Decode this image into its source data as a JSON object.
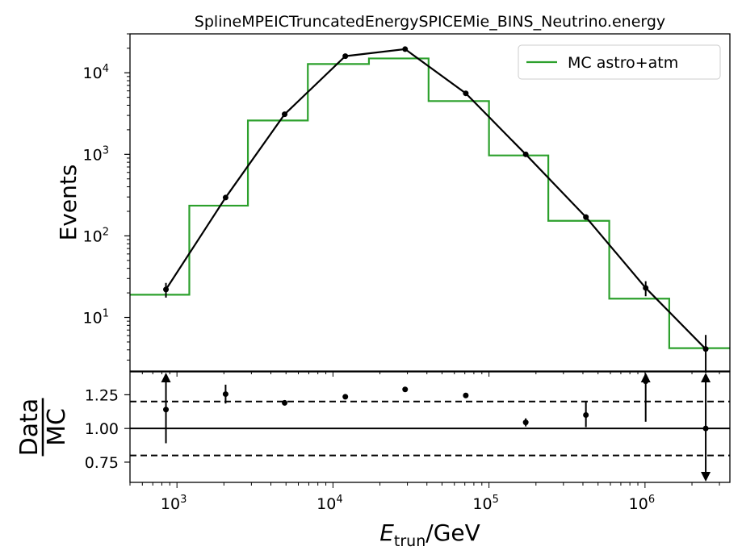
{
  "chart_data": [
    {
      "panel": "main",
      "type": "line",
      "title": "SplineMPEICTruncatedEnergySPICEMie_BINS_Neutrino.energy",
      "ylabel": "Events",
      "xscale": "log",
      "yscale": "log",
      "xlim": [
        500,
        3500000
      ],
      "ylim": [
        2.2,
        30000
      ],
      "x_ticks": [
        {
          "value": 1000,
          "base": "10",
          "exp": "3"
        },
        {
          "value": 10000,
          "base": "10",
          "exp": "4"
        },
        {
          "value": 100000,
          "base": "10",
          "exp": "5"
        },
        {
          "value": 1000000,
          "base": "10",
          "exp": "6"
        }
      ],
      "y_ticks": [
        {
          "value": 10,
          "base": "10",
          "exp": "1"
        },
        {
          "value": 100,
          "base": "10",
          "exp": "2"
        },
        {
          "value": 1000,
          "base": "10",
          "exp": "3"
        },
        {
          "value": 10000,
          "base": "10",
          "exp": "4"
        }
      ],
      "legend_position": "top-right",
      "histogram": {
        "name": "MC astro+atm",
        "color": "#2ca02c",
        "bin_edges": [
          500,
          1200,
          2850,
          6900,
          17000,
          41000,
          100000,
          240000,
          590000,
          1430000,
          3500000
        ],
        "values": [
          19,
          235,
          2600,
          12800,
          15000,
          4500,
          970,
          153,
          17,
          4.2
        ]
      },
      "data_series": {
        "color": "#000000",
        "x": [
          850,
          2050,
          4900,
          12000,
          29000,
          71000,
          172000,
          418000,
          1010000,
          2450000
        ],
        "y": [
          22,
          295,
          3100,
          16000,
          19500,
          5600,
          1000,
          170,
          23,
          4.1
        ],
        "yerr_low": [
          4.5,
          17,
          56,
          126,
          140,
          75,
          32,
          13,
          4.8,
          2
        ],
        "yerr_high": [
          4.5,
          17,
          56,
          126,
          140,
          75,
          32,
          13,
          4.8,
          2
        ]
      }
    },
    {
      "panel": "ratio",
      "type": "scatter",
      "xlabel_base": "E",
      "xlabel_sub": "trun",
      "xlabel_unit": "/GeV",
      "ylabel_num": "Data",
      "ylabel_den": "MC",
      "ylim": [
        0.6,
        1.42
      ],
      "y_ticks": [
        "0.75",
        "1.00",
        "1.25"
      ],
      "y_tick_values": [
        0.75,
        1.0,
        1.25
      ],
      "reference_line": 1.0,
      "band_lines": [
        0.8,
        1.2
      ],
      "points": [
        {
          "x": 850,
          "y": 1.14,
          "err_low": 0.25,
          "err_high": 0.3,
          "arrow_up": true,
          "arrow_down": false
        },
        {
          "x": 2050,
          "y": 1.255,
          "err_low": 0.07,
          "err_high": 0.07,
          "arrow_up": false,
          "arrow_down": false
        },
        {
          "x": 4900,
          "y": 1.19,
          "err_low": 0.02,
          "err_high": 0.02,
          "arrow_up": false,
          "arrow_down": false
        },
        {
          "x": 12000,
          "y": 1.235,
          "err_low": 0.01,
          "err_high": 0.01,
          "arrow_up": false,
          "arrow_down": false
        },
        {
          "x": 29000,
          "y": 1.29,
          "err_low": 0.01,
          "err_high": 0.01,
          "arrow_up": false,
          "arrow_down": false
        },
        {
          "x": 71000,
          "y": 1.245,
          "err_low": 0.01,
          "err_high": 0.01,
          "arrow_up": false,
          "arrow_down": false
        },
        {
          "x": 172000,
          "y": 1.045,
          "err_low": 0.03,
          "err_high": 0.03,
          "arrow_up": false,
          "arrow_down": false
        },
        {
          "x": 418000,
          "y": 1.1,
          "err_low": 0.09,
          "err_high": 0.1,
          "arrow_up": false,
          "arrow_down": false
        },
        {
          "x": 1010000,
          "y": 1.35,
          "err_low": 0.3,
          "err_high": 0.1,
          "arrow_up": true,
          "arrow_down": false
        },
        {
          "x": 2450000,
          "y": 1.0,
          "err_low": 0.4,
          "err_high": 0.42,
          "arrow_up": true,
          "arrow_down": true
        }
      ]
    }
  ]
}
